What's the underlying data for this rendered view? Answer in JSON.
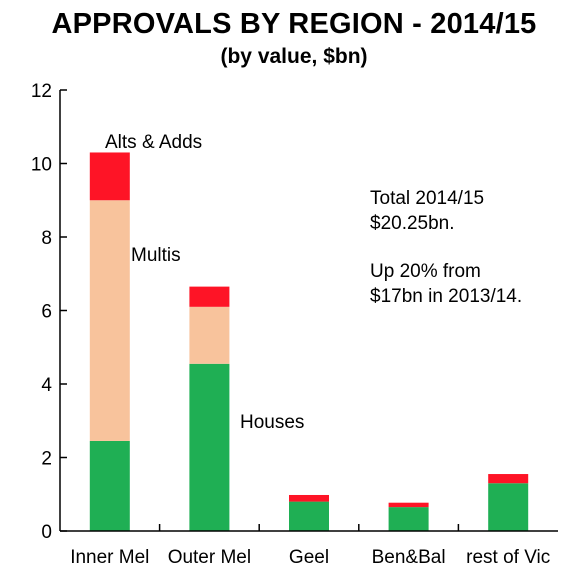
{
  "chart_data": {
    "type": "bar",
    "stacked": true,
    "title": "APPROVALS BY REGION - 2014/15",
    "subtitle": "(by value, $bn)",
    "xlabel": "",
    "ylabel": "",
    "ylim": [
      0,
      12
    ],
    "yticks": [
      "0",
      "2",
      "4",
      "6",
      "8",
      "10",
      "12"
    ],
    "grid": false,
    "legend": "none",
    "categories": [
      "Inner Mel",
      "Outer Mel",
      "Geel",
      "Ben&Bal",
      "rest of Vic"
    ],
    "series": [
      {
        "name": "Houses",
        "color": "#1faf54",
        "values": [
          2.45,
          4.55,
          0.8,
          0.65,
          1.3
        ]
      },
      {
        "name": "Multis",
        "color": "#f8c39c",
        "values": [
          6.55,
          1.55,
          0.0,
          0.0,
          0.0
        ]
      },
      {
        "name": "Alts & Adds",
        "color": "#fe1426",
        "values": [
          1.3,
          0.55,
          0.18,
          0.12,
          0.25
        ]
      }
    ],
    "annotations": [
      {
        "text": "Total 2014/15"
      },
      {
        "text": "$20.25bn."
      },
      {
        "text": "Up 20% from"
      },
      {
        "text": "$17bn in 2013/14."
      }
    ]
  }
}
